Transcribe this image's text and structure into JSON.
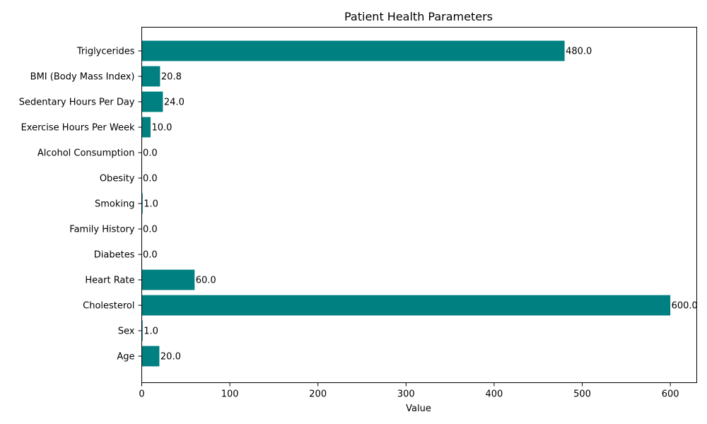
{
  "chart_data": {
    "type": "bar",
    "orientation": "horizontal",
    "title": "Patient Health Parameters",
    "xlabel": "Value",
    "ylabel": "",
    "xlim": [
      0,
      630
    ],
    "xticks": [
      0,
      100,
      200,
      300,
      400,
      500,
      600
    ],
    "grid": false,
    "bar_color": "#008080",
    "categories": [
      "Age",
      "Sex",
      "Cholesterol",
      "Heart Rate",
      "Diabetes",
      "Family History",
      "Smoking",
      "Obesity",
      "Alcohol Consumption",
      "Exercise Hours Per Week",
      "Sedentary Hours Per Day",
      "BMI (Body Mass Index)",
      "Triglycerides"
    ],
    "values": [
      20.0,
      1.0,
      600.0,
      60.0,
      0.0,
      0.0,
      1.0,
      0.0,
      0.0,
      10.0,
      24.0,
      20.8,
      480.0
    ],
    "data_labels": [
      "20.0",
      "1.0",
      "600.0",
      "60.0",
      "0.0",
      "0.0",
      "1.0",
      "0.0",
      "0.0",
      "10.0",
      "24.0",
      "20.8",
      "480.0"
    ]
  }
}
